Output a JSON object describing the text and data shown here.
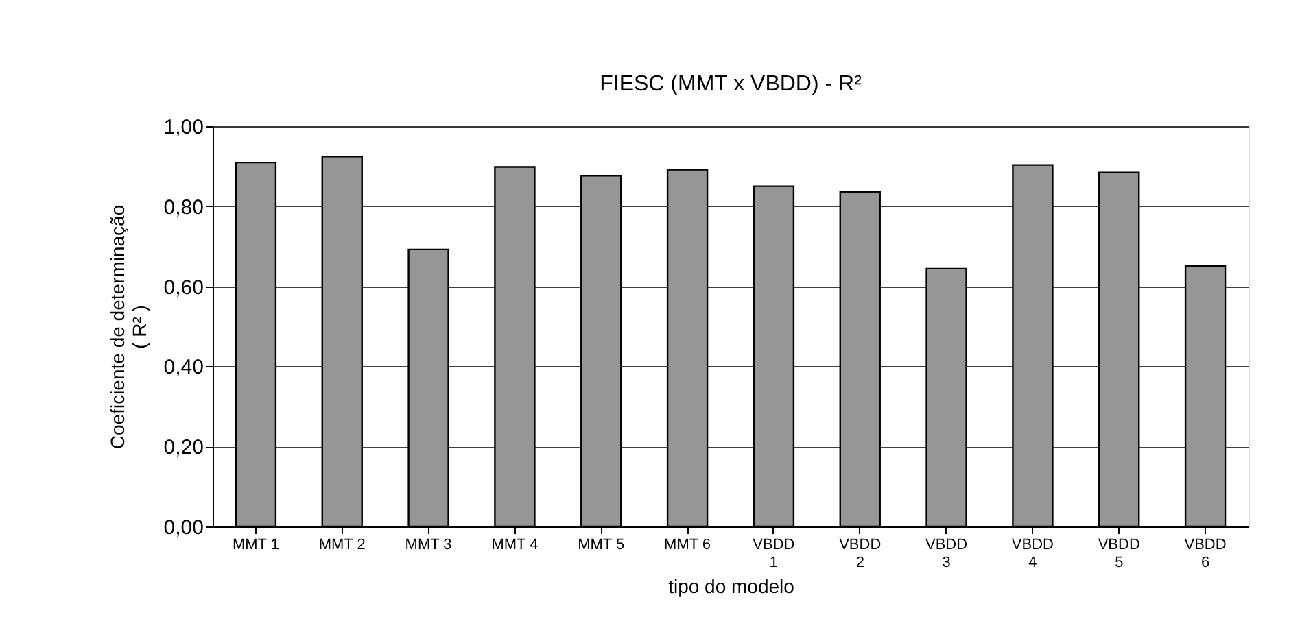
{
  "chart_data": {
    "type": "bar",
    "title": "FIESC (MMT x VBDD) - R²",
    "xlabel": "tipo do modelo",
    "ylabel": "Coeficiente de determinação\n( R² )",
    "categories": [
      "MMT 1",
      "MMT 2",
      "MMT 3",
      "MMT 4",
      "MMT 5",
      "MMT 6",
      "VBDD 1",
      "VBDD 2",
      "VBDD 3",
      "VBDD 4",
      "VBDD 5",
      "VBDD 6"
    ],
    "values": [
      0.909,
      0.924,
      0.692,
      0.898,
      0.876,
      0.891,
      0.85,
      0.836,
      0.644,
      0.903,
      0.884,
      0.651
    ],
    "color": "#969696",
    "ylim": [
      0,
      1
    ],
    "yticks": [
      {
        "value": 0,
        "label": "0,00"
      },
      {
        "value": 0.2,
        "label": "0,20"
      },
      {
        "value": 0.4,
        "label": "0,40"
      },
      {
        "value": 0.6,
        "label": "0,60"
      },
      {
        "value": 0.8,
        "label": "0,80"
      },
      {
        "value": 1,
        "label": "1,00"
      }
    ],
    "grid": "y"
  }
}
